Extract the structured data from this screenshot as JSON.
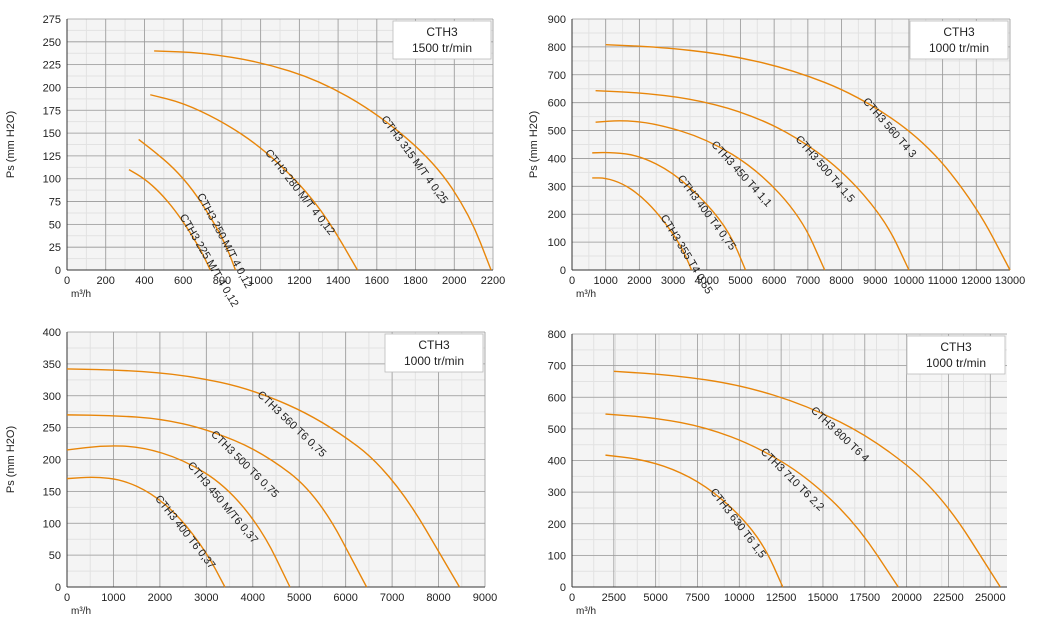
{
  "chart_data": [
    {
      "type": "line",
      "badge": {
        "line1": "CTH3",
        "line2": "1500 tr/min"
      },
      "ylabel": "Ps (mm H2O)",
      "xlabel": "m³/h",
      "xlim": [
        0,
        2200
      ],
      "ylim": [
        0,
        275
      ],
      "xticks": [
        0,
        200,
        400,
        600,
        800,
        1000,
        1200,
        1400,
        1600,
        1800,
        2000,
        2200
      ],
      "yticks": [
        0,
        25,
        50,
        75,
        100,
        125,
        150,
        175,
        200,
        225,
        250,
        275
      ],
      "series": [
        {
          "name": "CTH3 225 M/T 4 0,12",
          "x": [
            320,
            400,
            480,
            560,
            640,
            700,
            740
          ],
          "y": [
            110,
            100,
            85,
            65,
            40,
            18,
            0
          ]
        },
        {
          "name": "CTH3 250 M/T 4 0,12",
          "x": [
            370,
            450,
            550,
            650,
            750,
            820,
            870
          ],
          "y": [
            143,
            130,
            112,
            88,
            55,
            28,
            0
          ]
        },
        {
          "name": "CTH3 280 M/T 4 0,12",
          "x": [
            430,
            600,
            800,
            1000,
            1200,
            1350,
            1500
          ],
          "y": [
            192,
            183,
            163,
            135,
            95,
            55,
            0
          ]
        },
        {
          "name": "CTH3 315 M/T 4 0,25",
          "x": [
            450,
            700,
            1000,
            1300,
            1600,
            1900,
            2080,
            2190
          ],
          "y": [
            240,
            238,
            228,
            208,
            172,
            118,
            60,
            0
          ]
        }
      ]
    },
    {
      "type": "line",
      "badge": {
        "line1": "CTH3",
        "line2": "1000 tr/min"
      },
      "ylabel": "Ps (mm H2O)",
      "xlabel": "m³/h",
      "xlim": [
        0,
        13000
      ],
      "ylim": [
        0,
        900
      ],
      "xticks": [
        0,
        1000,
        2000,
        3000,
        4000,
        5000,
        6000,
        7000,
        8000,
        9000,
        10000,
        11000,
        12000,
        13000
      ],
      "yticks": [
        0,
        100,
        200,
        300,
        400,
        500,
        600,
        700,
        800,
        900
      ],
      "series": [
        {
          "name": "CTH3 355 T4 0,55",
          "x": [
            600,
            1000,
            1500,
            2000,
            2500,
            3000,
            3300,
            3550
          ],
          "y": [
            330,
            330,
            310,
            270,
            210,
            130,
            70,
            0
          ]
        },
        {
          "name": "CTH3 400 T4 0,75",
          "x": [
            600,
            1200,
            2000,
            3000,
            4000,
            4700,
            5150
          ],
          "y": [
            420,
            422,
            410,
            350,
            240,
            130,
            0
          ]
        },
        {
          "name": "CTH3 450 T4 1,1",
          "x": [
            700,
            1500,
            2500,
            4000,
            5500,
            6800,
            7500
          ],
          "y": [
            530,
            537,
            525,
            470,
            360,
            190,
            0
          ]
        },
        {
          "name": "CTH3 500 T4 1,5",
          "x": [
            700,
            2000,
            3500,
            5000,
            6500,
            8000,
            9300,
            10000
          ],
          "y": [
            643,
            636,
            615,
            570,
            490,
            360,
            180,
            0
          ]
        },
        {
          "name": "CTH3 560 T4 3",
          "x": [
            1000,
            2500,
            4500,
            6500,
            8500,
            10500,
            12000,
            13000
          ],
          "y": [
            808,
            800,
            775,
            720,
            625,
            460,
            230,
            0
          ]
        }
      ]
    },
    {
      "type": "line",
      "badge": {
        "line1": "CTH3",
        "line2": "1000 tr/min"
      },
      "ylabel": "Ps (mm H2O)",
      "xlabel": "m³/h",
      "xlim": [
        0,
        9000
      ],
      "ylim": [
        0,
        400
      ],
      "xticks": [
        0,
        1000,
        2000,
        3000,
        4000,
        5000,
        6000,
        7000,
        8000,
        9000
      ],
      "yticks": [
        0,
        50,
        100,
        150,
        200,
        250,
        300,
        350,
        400
      ],
      "series": [
        {
          "name": "CTH3 400 T6 0,37",
          "x": [
            0,
            600,
            1200,
            1800,
            2400,
            3000,
            3400
          ],
          "y": [
            170,
            173,
            168,
            148,
            112,
            55,
            0
          ]
        },
        {
          "name": "CTH3 450 M/T6 0,37",
          "x": [
            0,
            800,
            1600,
            2500,
            3400,
            4200,
            4800
          ],
          "y": [
            215,
            222,
            220,
            200,
            160,
            90,
            0
          ]
        },
        {
          "name": "CTH3 500 T6 0,75",
          "x": [
            0,
            1000,
            2000,
            3000,
            4200,
            5400,
            6450
          ],
          "y": [
            270,
            269,
            264,
            248,
            212,
            145,
            0
          ]
        },
        {
          "name": "CTH3 560 T6 0,75",
          "x": [
            0,
            1300,
            2600,
            4000,
            5500,
            7000,
            8450
          ],
          "y": [
            342,
            340,
            332,
            310,
            262,
            180,
            0
          ]
        }
      ]
    },
    {
      "type": "line",
      "badge": {
        "line1": "CTH3",
        "line2": "1000 tr/min"
      },
      "ylabel": "",
      "xlabel": "m³/h",
      "xlim": [
        0,
        26000
      ],
      "ylim": [
        0,
        800
      ],
      "xticks": [
        0,
        2500,
        5000,
        7500,
        10000,
        12500,
        15000,
        17500,
        20000,
        22500,
        25000
      ],
      "yticks": [
        0,
        100,
        200,
        300,
        400,
        500,
        600,
        700,
        800
      ],
      "series": [
        {
          "name": "CTH3 630 T6 1,5",
          "x": [
            2000,
            4000,
            6000,
            8000,
            10000,
            11500,
            12600
          ],
          "y": [
            417,
            405,
            375,
            320,
            230,
            130,
            0
          ]
        },
        {
          "name": "CTH3 710 T6 2,2",
          "x": [
            2000,
            5000,
            8000,
            11000,
            14000,
            17000,
            19500
          ],
          "y": [
            547,
            535,
            505,
            445,
            350,
            200,
            0
          ]
        },
        {
          "name": "CTH3 800 T6 4",
          "x": [
            2500,
            6000,
            10000,
            14000,
            18000,
            22000,
            25600
          ],
          "y": [
            682,
            670,
            640,
            575,
            470,
            300,
            0
          ]
        }
      ]
    }
  ]
}
